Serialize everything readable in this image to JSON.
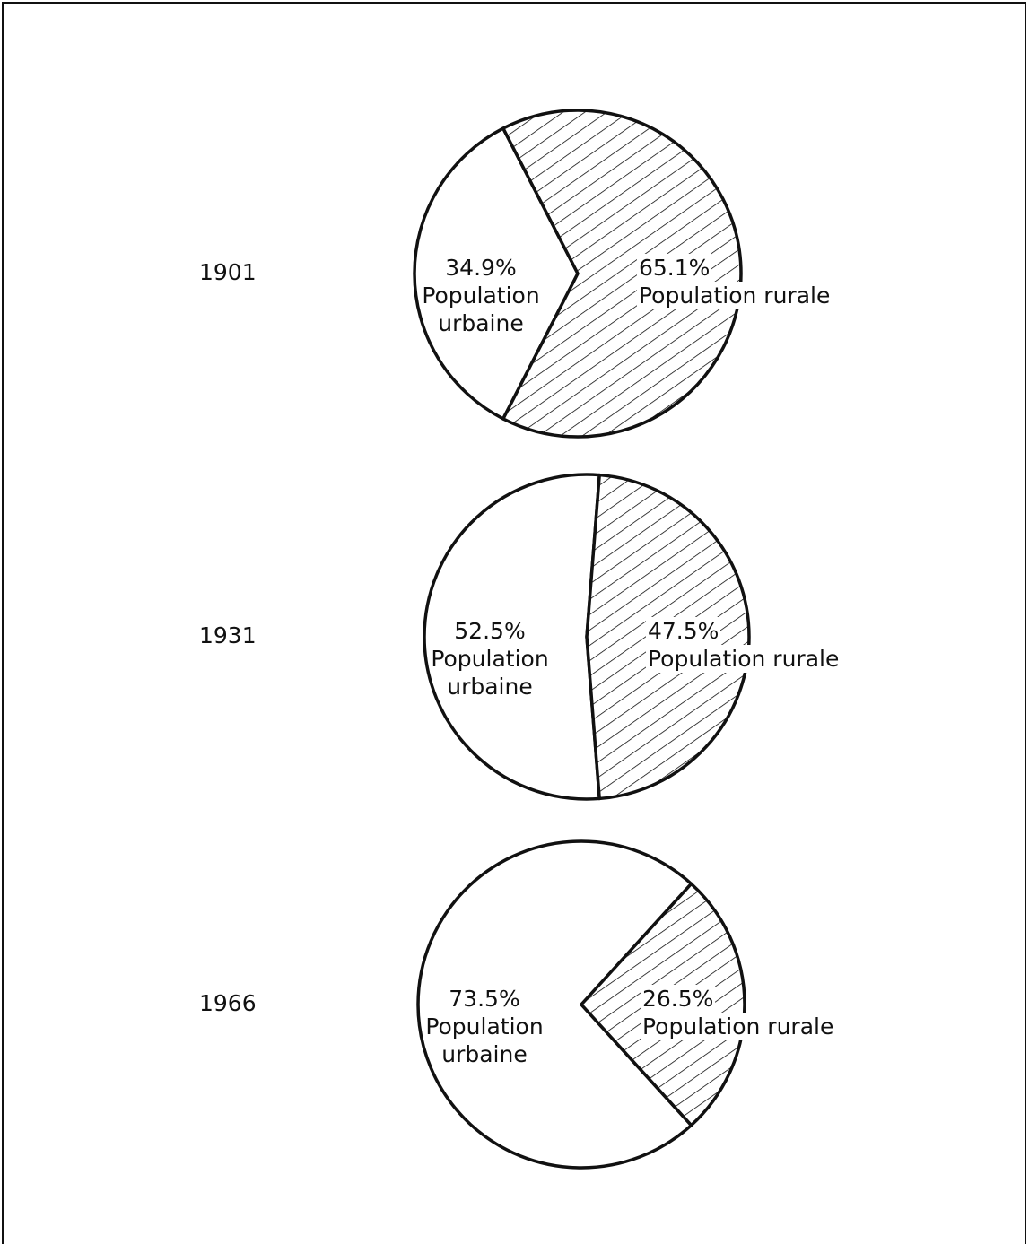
{
  "chart_data": [
    {
      "type": "pie",
      "title": "1901",
      "categories": [
        "Population urbaine",
        "Population rurale"
      ],
      "values": [
        34.9,
        65.1
      ],
      "value_labels": [
        "34.9%",
        "65.1%"
      ],
      "colors": [
        "#ffffff",
        "#000000"
      ],
      "hatch": [
        false,
        true
      ]
    },
    {
      "type": "pie",
      "title": "1931",
      "categories": [
        "Population urbaine",
        "Population rurale"
      ],
      "values": [
        52.5,
        47.5
      ],
      "value_labels": [
        "52.5%",
        "47.5%"
      ],
      "colors": [
        "#ffffff",
        "#000000"
      ],
      "hatch": [
        false,
        true
      ]
    },
    {
      "type": "pie",
      "title": "1966",
      "categories": [
        "Population urbaine",
        "Population rurale"
      ],
      "values": [
        73.5,
        26.5
      ],
      "value_labels": [
        "73.5%",
        "26.5%"
      ],
      "colors": [
        "#ffffff",
        "#000000"
      ],
      "hatch": [
        false,
        true
      ]
    }
  ]
}
